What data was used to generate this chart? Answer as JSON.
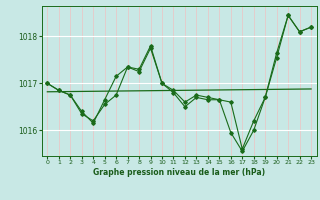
{
  "title": "Graphe pression niveau de la mer (hPa)",
  "background_color": "#c8e8e5",
  "grid_color_h": "#ffffff",
  "grid_color_v": "#e8c8c8",
  "line_color": "#1a6b1a",
  "text_color": "#1a5c1a",
  "x_min": -0.5,
  "x_max": 23.5,
  "y_min": 1015.45,
  "y_max": 1018.65,
  "yticks": [
    1016,
    1017,
    1018
  ],
  "xticks": [
    0,
    1,
    2,
    3,
    4,
    5,
    6,
    7,
    8,
    9,
    10,
    11,
    12,
    13,
    14,
    15,
    16,
    17,
    18,
    19,
    20,
    21,
    22,
    23
  ],
  "series1_x": [
    0,
    1,
    2,
    3,
    4,
    5,
    6,
    7,
    8,
    9,
    10,
    11,
    12,
    13,
    14,
    15,
    16,
    17,
    18,
    19,
    20,
    21,
    22,
    23
  ],
  "series1_y": [
    1017.0,
    1016.85,
    1016.75,
    1016.35,
    1016.2,
    1016.55,
    1016.75,
    1017.35,
    1017.3,
    1017.8,
    1017.0,
    1016.85,
    1016.6,
    1016.75,
    1016.7,
    1016.65,
    1016.6,
    1015.6,
    1016.2,
    1016.7,
    1017.65,
    1018.45,
    1018.1,
    1018.2
  ],
  "series2_x": [
    0,
    1,
    2,
    3,
    4,
    5,
    6,
    7,
    8,
    9,
    10,
    11,
    12,
    13,
    14,
    15,
    16,
    17,
    18,
    19,
    20,
    21,
    22,
    23
  ],
  "series2_y": [
    1017.0,
    1016.85,
    1016.75,
    1016.4,
    1016.15,
    1016.65,
    1017.15,
    1017.35,
    1017.25,
    1017.75,
    1017.0,
    1016.8,
    1016.5,
    1016.7,
    1016.65,
    1016.65,
    1015.95,
    1015.55,
    1016.0,
    1016.7,
    1017.55,
    1018.45,
    1018.1,
    1018.2
  ],
  "trend_x": [
    0,
    23
  ],
  "trend_y": [
    1016.82,
    1016.88
  ]
}
